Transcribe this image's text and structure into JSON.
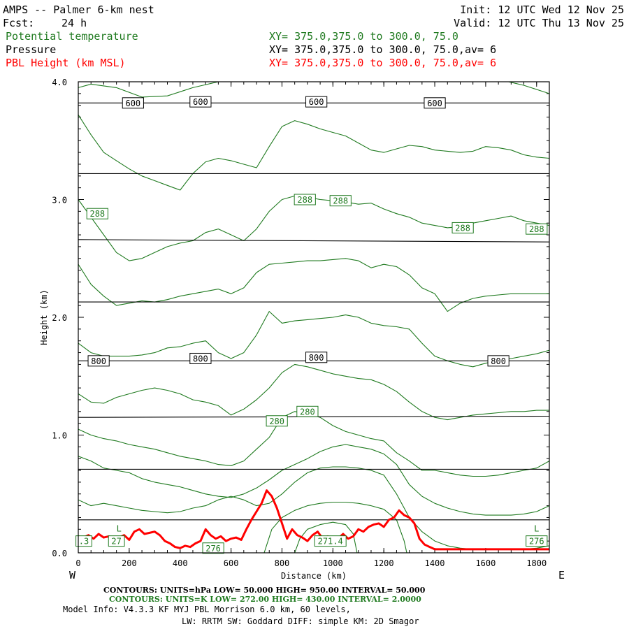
{
  "header": {
    "title": "AMPS -- Palmer 6-km nest",
    "fcst_label": "Fcst:",
    "fcst_value": "24 h",
    "init": "Init: 12 UTC Wed 12 Nov 25",
    "valid": "Valid: 12 UTC Thu 13 Nov 25",
    "var1_name": "Potential temperature",
    "var1_xy": "XY= 375.0,375.0 to 300.0, 75.0",
    "var2_name": "Pressure",
    "var2_xy": "XY= 375.0,375.0 to 300.0, 75.0,av=  6",
    "var3_name": "PBL Height (km MSL)",
    "var3_xy": "XY= 375.0,375.0 to 300.0, 75.0,av=  6"
  },
  "footer": {
    "pressure_contours": "CONTOURS:  UNITS=hPa  LOW=  50.000        HIGH=  950.00       INTERVAL=   50.000",
    "theta_contours": "CONTOURS:  UNITS=K  LOW=  272.00       HIGH=  430.00       INTERVAL=   2.0000",
    "model_info": "Model Info: V4.3.3    KF      MYJ PBL  Morrison          6.0 km,  60 levels,",
    "physics_info": "LW: RRTM SW: Goddard DIFF: simple KM: 2D Smagor",
    "west": "W",
    "east": "E"
  },
  "colors": {
    "theta": "#1f7a1f",
    "pressure": "#000000",
    "pbl": "#ff0000"
  },
  "chart_data": {
    "type": "line",
    "title": "AMPS -- Palmer 6-km nest",
    "xlabel": "Distance (km)",
    "ylabel": "Height (km)",
    "xlim": [
      0,
      1850
    ],
    "ylim": [
      0,
      4
    ],
    "x_ticks": [
      0,
      200,
      400,
      600,
      800,
      1000,
      1200,
      1400,
      1600,
      1800
    ],
    "x_tick_labels": [
      "0",
      "200",
      "400",
      "600",
      "800",
      "1000",
      "1200",
      "1400",
      "1600",
      "1800"
    ],
    "y_ticks": [
      0,
      1,
      2,
      3,
      4
    ],
    "y_tick_labels": [
      "0.0",
      "1.0",
      "2.0",
      "3.0",
      "4.0"
    ],
    "pressure_lines": [
      {
        "x": [
          0,
          1850
        ],
        "y": [
          3.82,
          3.82
        ],
        "labels": [
          {
            "text": "600",
            "x": 215,
            "y": 3.82
          },
          {
            "text": "600",
            "x": 480,
            "y": 3.83
          },
          {
            "text": "600",
            "x": 935,
            "y": 3.83
          },
          {
            "text": "600",
            "x": 1400,
            "y": 3.82
          }
        ]
      },
      {
        "x": [
          0,
          1850
        ],
        "y": [
          3.22,
          3.22
        ]
      },
      {
        "x": [
          0,
          1850
        ],
        "y": [
          2.66,
          2.64
        ]
      },
      {
        "x": [
          0,
          1850
        ],
        "y": [
          2.13,
          2.13
        ]
      },
      {
        "x": [
          0,
          1850
        ],
        "y": [
          1.63,
          1.63
        ],
        "labels": [
          {
            "text": "800",
            "x": 80,
            "y": 1.63
          },
          {
            "text": "800",
            "x": 480,
            "y": 1.65
          },
          {
            "text": "800",
            "x": 935,
            "y": 1.66
          },
          {
            "text": "800",
            "x": 1650,
            "y": 1.63
          }
        ]
      },
      {
        "x": [
          0,
          1850
        ],
        "y": [
          1.15,
          1.16
        ]
      },
      {
        "x": [
          0,
          1850
        ],
        "y": [
          0.71,
          0.71
        ]
      },
      {
        "x": [
          0,
          1850
        ],
        "y": [
          0.28,
          0.28
        ]
      }
    ],
    "theta_lines": [
      {
        "x": [
          0,
          50,
          150,
          250,
          350,
          450,
          550,
          650,
          750,
          850,
          950,
          1050,
          1150,
          1250,
          1350,
          1450,
          1550,
          1650,
          1750,
          1850
        ],
        "y": [
          3.95,
          3.98,
          3.95,
          3.87,
          3.88,
          3.95,
          4.0,
          4.02,
          4.02,
          4.02,
          4.02,
          4.02,
          4.02,
          4.02,
          4.02,
          4.02,
          4.02,
          4.02,
          3.97,
          3.9
        ]
      },
      {
        "x": [
          0,
          50,
          100,
          150,
          200,
          250,
          300,
          350,
          400,
          450,
          500,
          550,
          600,
          650,
          700,
          750,
          800,
          850,
          900,
          950,
          1000,
          1050,
          1100,
          1150,
          1200,
          1250,
          1300,
          1350,
          1400,
          1450,
          1500,
          1550,
          1600,
          1650,
          1700,
          1750,
          1800,
          1850
        ],
        "y": [
          3.72,
          3.55,
          3.4,
          3.33,
          3.26,
          3.2,
          3.16,
          3.12,
          3.08,
          3.22,
          3.32,
          3.35,
          3.33,
          3.3,
          3.27,
          3.45,
          3.62,
          3.67,
          3.64,
          3.6,
          3.57,
          3.54,
          3.48,
          3.42,
          3.4,
          3.43,
          3.46,
          3.45,
          3.42,
          3.41,
          3.4,
          3.41,
          3.45,
          3.44,
          3.42,
          3.38,
          3.36,
          3.35
        ]
      },
      {
        "x": [
          0,
          50,
          100,
          150,
          200,
          250,
          300,
          350,
          400,
          450,
          500,
          550,
          600,
          650,
          700,
          750,
          800,
          850,
          900,
          950,
          1000,
          1050,
          1100,
          1150,
          1200,
          1250,
          1300,
          1350,
          1400,
          1450,
          1500,
          1550,
          1600,
          1650,
          1700,
          1750,
          1800,
          1850
        ],
        "y": [
          3.0,
          2.85,
          2.7,
          2.55,
          2.48,
          2.5,
          2.55,
          2.6,
          2.63,
          2.65,
          2.72,
          2.75,
          2.7,
          2.65,
          2.75,
          2.9,
          3.0,
          3.03,
          3.02,
          3.0,
          2.99,
          2.98,
          2.96,
          2.97,
          2.92,
          2.88,
          2.85,
          2.8,
          2.78,
          2.76,
          2.77,
          2.8,
          2.82,
          2.84,
          2.86,
          2.82,
          2.8,
          2.78
        ]
      },
      {
        "x": [
          0,
          50,
          100,
          150,
          200,
          250,
          300,
          350,
          400,
          450,
          500,
          550,
          600,
          650,
          700,
          750,
          800,
          850,
          900,
          950,
          1000,
          1050,
          1100,
          1150,
          1200,
          1250,
          1300,
          1350,
          1400,
          1450,
          1500,
          1550,
          1600,
          1650,
          1700,
          1750,
          1800,
          1850
        ],
        "y": [
          2.45,
          2.28,
          2.18,
          2.1,
          2.12,
          2.14,
          2.13,
          2.15,
          2.18,
          2.2,
          2.22,
          2.24,
          2.2,
          2.25,
          2.38,
          2.45,
          2.46,
          2.47,
          2.48,
          2.48,
          2.49,
          2.5,
          2.48,
          2.42,
          2.45,
          2.43,
          2.36,
          2.25,
          2.2,
          2.05,
          2.12,
          2.16,
          2.18,
          2.19,
          2.2,
          2.2,
          2.2,
          2.2
        ]
      },
      {
        "x": [
          0,
          50,
          100,
          150,
          200,
          250,
          300,
          350,
          400,
          450,
          500,
          550,
          600,
          650,
          700,
          750,
          800,
          850,
          900,
          950,
          1000,
          1050,
          1100,
          1150,
          1200,
          1250,
          1300,
          1350,
          1400,
          1450,
          1500,
          1550,
          1600,
          1650,
          1700,
          1750,
          1800,
          1850
        ],
        "y": [
          1.78,
          1.7,
          1.67,
          1.67,
          1.67,
          1.68,
          1.7,
          1.74,
          1.75,
          1.78,
          1.8,
          1.7,
          1.65,
          1.7,
          1.85,
          2.05,
          1.95,
          1.97,
          1.98,
          1.99,
          2.0,
          2.02,
          2.0,
          1.95,
          1.93,
          1.92,
          1.9,
          1.78,
          1.67,
          1.63,
          1.6,
          1.58,
          1.61,
          1.63,
          1.65,
          1.67,
          1.69,
          1.72
        ]
      },
      {
        "x": [
          0,
          50,
          100,
          150,
          200,
          250,
          300,
          350,
          400,
          450,
          500,
          550,
          600,
          650,
          700,
          750,
          800,
          850,
          900,
          950,
          1000,
          1050,
          1100,
          1150,
          1200,
          1250,
          1300,
          1350,
          1400,
          1450,
          1500,
          1550,
          1600,
          1650,
          1700,
          1750,
          1800,
          1850
        ],
        "y": [
          1.35,
          1.28,
          1.27,
          1.32,
          1.35,
          1.38,
          1.4,
          1.38,
          1.35,
          1.3,
          1.28,
          1.25,
          1.17,
          1.22,
          1.3,
          1.4,
          1.53,
          1.6,
          1.58,
          1.55,
          1.52,
          1.5,
          1.48,
          1.47,
          1.43,
          1.37,
          1.28,
          1.2,
          1.15,
          1.13,
          1.15,
          1.17,
          1.18,
          1.19,
          1.2,
          1.2,
          1.21,
          1.21
        ]
      },
      {
        "x": [
          0,
          50,
          100,
          150,
          200,
          250,
          300,
          350,
          400,
          450,
          500,
          550,
          600,
          650,
          700,
          750,
          800,
          850,
          900,
          950,
          1000,
          1050,
          1100,
          1150,
          1200,
          1250,
          1300,
          1350,
          1400,
          1450,
          1500,
          1550,
          1600,
          1650,
          1700,
          1750,
          1800,
          1850
        ],
        "y": [
          1.05,
          1.0,
          0.97,
          0.95,
          0.92,
          0.9,
          0.88,
          0.85,
          0.82,
          0.8,
          0.78,
          0.75,
          0.74,
          0.78,
          0.88,
          0.98,
          1.15,
          1.2,
          1.18,
          1.15,
          1.08,
          1.03,
          1.0,
          0.97,
          0.95,
          0.85,
          0.78,
          0.7,
          0.7,
          0.68,
          0.66,
          0.65,
          0.65,
          0.66,
          0.68,
          0.7,
          0.72,
          0.78
        ]
      },
      {
        "x": [
          0,
          50,
          100,
          150,
          200,
          250,
          300,
          350,
          400,
          450,
          500,
          550,
          600,
          650,
          700,
          750,
          800,
          850,
          900,
          950,
          1000,
          1050,
          1100,
          1150,
          1200,
          1250,
          1300,
          1350,
          1400,
          1450,
          1500,
          1550,
          1600,
          1650,
          1700,
          1750,
          1800,
          1850
        ],
        "y": [
          0.82,
          0.78,
          0.72,
          0.7,
          0.68,
          0.63,
          0.6,
          0.58,
          0.56,
          0.53,
          0.5,
          0.48,
          0.47,
          0.5,
          0.55,
          0.62,
          0.7,
          0.75,
          0.8,
          0.86,
          0.9,
          0.92,
          0.9,
          0.88,
          0.84,
          0.75,
          0.58,
          0.48,
          0.42,
          0.38,
          0.35,
          0.33,
          0.32,
          0.32,
          0.32,
          0.33,
          0.35,
          0.4
        ]
      },
      {
        "x": [
          0,
          50,
          100,
          150,
          200,
          250,
          300,
          350,
          400,
          450,
          500,
          550,
          600,
          650,
          700,
          750,
          800,
          850,
          900,
          950,
          1000,
          1050,
          1100,
          1150,
          1200,
          1250,
          1300,
          1350,
          1400,
          1450,
          1500,
          1550,
          1600,
          1650,
          1700,
          1750,
          1800,
          1850
        ],
        "y": [
          0.45,
          0.4,
          0.42,
          0.4,
          0.38,
          0.36,
          0.35,
          0.34,
          0.35,
          0.38,
          0.4,
          0.45,
          0.48,
          0.45,
          0.4,
          0.42,
          0.5,
          0.6,
          0.68,
          0.72,
          0.73,
          0.73,
          0.72,
          0.7,
          0.66,
          0.5,
          0.3,
          0.18,
          0.1,
          0.06,
          0.04,
          0.03,
          0.03,
          0.03,
          0.03,
          0.03,
          0.04,
          0.06
        ]
      },
      {
        "x": [
          730,
          760,
          800,
          850,
          900,
          950,
          1000,
          1050,
          1100,
          1150,
          1200,
          1250,
          1280,
          1290
        ],
        "y": [
          0.0,
          0.2,
          0.3,
          0.36,
          0.4,
          0.42,
          0.43,
          0.43,
          0.42,
          0.4,
          0.37,
          0.28,
          0.1,
          0.0
        ]
      },
      {
        "x": [
          850,
          870,
          900,
          950,
          1000,
          1050,
          1080,
          1095
        ],
        "y": [
          0.0,
          0.12,
          0.2,
          0.24,
          0.26,
          0.24,
          0.16,
          0.0
        ]
      }
    ],
    "theta_labels": [
      {
        "text": "288",
        "x": 75,
        "y": 2.88
      },
      {
        "text": "288",
        "x": 890,
        "y": 3.0
      },
      {
        "text": "288",
        "x": 1030,
        "y": 2.99
      },
      {
        "text": "288",
        "x": 1510,
        "y": 2.76
      },
      {
        "text": "288",
        "x": 1800,
        "y": 2.75
      },
      {
        "text": "280",
        "x": 780,
        "y": 1.12
      },
      {
        "text": "280",
        "x": 900,
        "y": 1.2
      },
      {
        "text": "276",
        "x": 530,
        "y": 0.04
      },
      {
        "text": "271.4",
        "x": 990,
        "y": 0.1
      },
      {
        "text": "276",
        "x": 1800,
        "y": 0.1
      },
      {
        "text": "27",
        "x": 150,
        "y": 0.1
      },
      {
        "text": ".3",
        "x": 22,
        "y": 0.1
      }
    ],
    "low_markers": [
      {
        "text": "L",
        "x": 160,
        "y": 0.18
      },
      {
        "text": "L",
        "x": 1800,
        "y": 0.18
      }
    ],
    "pbl_height": {
      "x": [
        0,
        20,
        40,
        60,
        80,
        100,
        120,
        140,
        160,
        180,
        200,
        220,
        240,
        260,
        280,
        300,
        320,
        340,
        360,
        380,
        400,
        420,
        440,
        460,
        480,
        500,
        520,
        540,
        560,
        580,
        600,
        620,
        640,
        660,
        680,
        700,
        720,
        740,
        760,
        780,
        800,
        820,
        840,
        860,
        880,
        900,
        920,
        940,
        960,
        980,
        1000,
        1020,
        1040,
        1060,
        1080,
        1100,
        1120,
        1140,
        1160,
        1180,
        1200,
        1220,
        1240,
        1260,
        1280,
        1300,
        1320,
        1340,
        1360,
        1380,
        1400,
        1450,
        1500,
        1600,
        1700,
        1800,
        1850
      ],
      "y": [
        0.14,
        0.13,
        0.15,
        0.12,
        0.16,
        0.13,
        0.14,
        0.12,
        0.13,
        0.15,
        0.11,
        0.18,
        0.2,
        0.16,
        0.17,
        0.18,
        0.15,
        0.1,
        0.08,
        0.05,
        0.04,
        0.06,
        0.05,
        0.08,
        0.1,
        0.2,
        0.15,
        0.12,
        0.14,
        0.1,
        0.12,
        0.13,
        0.11,
        0.2,
        0.28,
        0.35,
        0.42,
        0.53,
        0.48,
        0.38,
        0.25,
        0.12,
        0.2,
        0.15,
        0.13,
        0.1,
        0.15,
        0.18,
        0.12,
        0.14,
        0.1,
        0.12,
        0.16,
        0.12,
        0.14,
        0.2,
        0.18,
        0.22,
        0.24,
        0.25,
        0.22,
        0.28,
        0.3,
        0.36,
        0.32,
        0.3,
        0.25,
        0.12,
        0.07,
        0.05,
        0.03,
        0.03,
        0.03,
        0.03,
        0.03,
        0.03,
        0.03
      ]
    }
  }
}
